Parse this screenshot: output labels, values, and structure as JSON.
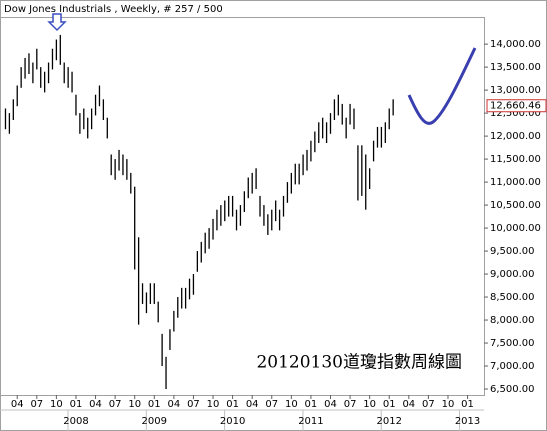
{
  "chart_data": {
    "type": "hilo",
    "title": "Dow Jones Industrials , Weekly, # 257 / 500",
    "annotation": "20120130道瓊指數周線圖",
    "last_value": {
      "value": 12660.46,
      "label": "12,660.46"
    },
    "x": [
      2007.1,
      2007.15,
      2007.2,
      2007.25,
      2007.3,
      2007.35,
      2007.4,
      2007.45,
      2007.5,
      2007.55,
      2007.6,
      2007.65,
      2007.7,
      2007.75,
      2007.8,
      2007.85,
      2007.9,
      2007.95,
      2008.0,
      2008.05,
      2008.1,
      2008.15,
      2008.2,
      2008.25,
      2008.3,
      2008.35,
      2008.4,
      2008.45,
      2008.5,
      2008.55,
      2008.6,
      2008.65,
      2008.7,
      2008.75,
      2008.8,
      2008.85,
      2008.9,
      2008.95,
      2009.0,
      2009.05,
      2009.1,
      2009.15,
      2009.2,
      2009.25,
      2009.3,
      2009.35,
      2009.4,
      2009.45,
      2009.5,
      2009.55,
      2009.6,
      2009.65,
      2009.7,
      2009.75,
      2009.8,
      2009.85,
      2009.9,
      2009.95,
      2010.0,
      2010.05,
      2010.1,
      2010.15,
      2010.2,
      2010.25,
      2010.3,
      2010.35,
      2010.4,
      2010.45,
      2010.5,
      2010.55,
      2010.6,
      2010.65,
      2010.7,
      2010.75,
      2010.8,
      2010.85,
      2010.9,
      2010.95,
      2011.0,
      2011.05,
      2011.1,
      2011.15,
      2011.2,
      2011.25,
      2011.3,
      2011.35,
      2011.4,
      2011.45,
      2011.5,
      2011.55,
      2011.6,
      2011.65,
      2011.7,
      2011.75,
      2011.8,
      2011.85,
      2011.9,
      2011.95,
      2012.0,
      2012.05
    ],
    "high": [
      12600,
      12500,
      12800,
      13100,
      13500,
      13700,
      13800,
      13600,
      13900,
      13500,
      13400,
      13600,
      13900,
      14100,
      14200,
      13600,
      13500,
      13400,
      12900,
      12500,
      12600,
      12400,
      12600,
      12900,
      13100,
      12800,
      12400,
      11600,
      11500,
      11700,
      11600,
      11500,
      11200,
      10900,
      9800,
      8800,
      8600,
      8800,
      8800,
      8400,
      7700,
      7200,
      7800,
      8200,
      8500,
      8700,
      8700,
      8900,
      9000,
      9500,
      9700,
      9900,
      10000,
      10200,
      10400,
      10500,
      10600,
      10700,
      10700,
      10400,
      10500,
      10800,
      11100,
      11200,
      11300,
      10700,
      10500,
      10300,
      10400,
      10600,
      10400,
      10700,
      11000,
      11200,
      11400,
      11400,
      11600,
      11700,
      11900,
      12100,
      12300,
      12400,
      12300,
      12500,
      12800,
      12900,
      12700,
      12400,
      12700,
      12600,
      11800,
      11800,
      11600,
      11300,
      11900,
      12200,
      12200,
      12300,
      12600,
      12800
    ],
    "low": [
      12150,
      12050,
      12350,
      12650,
      13050,
      13250,
      13350,
      13150,
      13450,
      13050,
      12950,
      13150,
      13450,
      13650,
      13550,
      13150,
      13050,
      12950,
      12450,
      12050,
      12150,
      11950,
      12150,
      12450,
      12650,
      12350,
      11950,
      11150,
      11050,
      11250,
      11150,
      11050,
      10750,
      9100,
      7900,
      8350,
      8150,
      8350,
      8350,
      7950,
      7000,
      6500,
      7350,
      7750,
      8050,
      8250,
      8250,
      8450,
      8550,
      9050,
      9250,
      9450,
      9550,
      9750,
      9950,
      10050,
      10150,
      10250,
      10250,
      9950,
      10050,
      10350,
      10650,
      10750,
      10850,
      10250,
      10050,
      9850,
      9950,
      10150,
      9950,
      10250,
      10550,
      10750,
      10950,
      10950,
      11150,
      11250,
      11450,
      11650,
      11850,
      11950,
      11850,
      12050,
      12350,
      12450,
      12250,
      11950,
      12250,
      12150,
      10600,
      10700,
      10400,
      10850,
      11450,
      11750,
      11750,
      11850,
      12150,
      12450
    ],
    "color": "#000000",
    "xlim": [
      2007.03,
      2013.21
    ],
    "ylim": [
      6370,
      14590
    ],
    "yticks": [
      {
        "value": 6500,
        "label": "6,500.00"
      },
      {
        "value": 7000,
        "label": "7,000.00"
      },
      {
        "value": 7500,
        "label": "7,500.00"
      },
      {
        "value": 8000,
        "label": "8,000.00"
      },
      {
        "value": 8500,
        "label": "8,500.00"
      },
      {
        "value": 9000,
        "label": "9,000.00"
      },
      {
        "value": 9500,
        "label": "9,500.00"
      },
      {
        "value": 10000,
        "label": "10,000.00"
      },
      {
        "value": 10500,
        "label": "10,500.00"
      },
      {
        "value": 11000,
        "label": "11,000.00"
      },
      {
        "value": 11500,
        "label": "11,500.00"
      },
      {
        "value": 12000,
        "label": "12,000.00"
      },
      {
        "value": 12500,
        "label": "12,500.00"
      },
      {
        "value": 13000,
        "label": "13,000.00"
      },
      {
        "value": 13500,
        "label": "13,500.00"
      },
      {
        "value": 14000,
        "label": "14,000.00"
      }
    ],
    "xticks": [
      {
        "value": 2007.25,
        "label": "04"
      },
      {
        "value": 2007.5,
        "label": "07"
      },
      {
        "value": 2007.75,
        "label": "10"
      },
      {
        "value": 2008,
        "label": "01"
      },
      {
        "value": 2008.25,
        "label": "04"
      },
      {
        "value": 2008.5,
        "label": "07"
      },
      {
        "value": 2008.75,
        "label": "10"
      },
      {
        "value": 2009,
        "label": "01"
      },
      {
        "value": 2009.25,
        "label": "04"
      },
      {
        "value": 2009.5,
        "label": "07"
      },
      {
        "value": 2009.75,
        "label": "10"
      },
      {
        "value": 2010,
        "label": "01"
      },
      {
        "value": 2010.25,
        "label": "04"
      },
      {
        "value": 2010.5,
        "label": "07"
      },
      {
        "value": 2010.75,
        "label": "10"
      },
      {
        "value": 2011,
        "label": "01"
      },
      {
        "value": 2011.25,
        "label": "04"
      },
      {
        "value": 2011.5,
        "label": "07"
      },
      {
        "value": 2011.75,
        "label": "10"
      },
      {
        "value": 2012,
        "label": "01"
      },
      {
        "value": 2012.25,
        "label": "04"
      },
      {
        "value": 2012.5,
        "label": "07"
      },
      {
        "value": 2012.75,
        "label": "10"
      },
      {
        "value": 2013,
        "label": "01"
      }
    ],
    "year_ticks": [
      2008,
      2009,
      2010,
      2011,
      2012,
      2013
    ]
  }
}
